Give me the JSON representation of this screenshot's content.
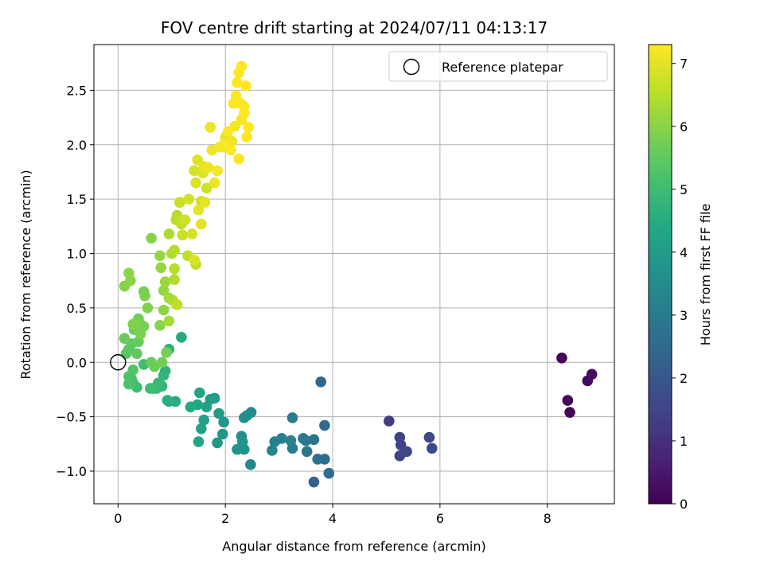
{
  "chart_data": {
    "type": "scatter",
    "title": "FOV centre drift starting at 2024/07/11 04:13:17",
    "xlabel": "Angular distance from reference (arcmin)",
    "ylabel": "Rotation from reference (arcmin)",
    "xlim": [
      -0.45,
      9.25
    ],
    "ylim": [
      -1.3,
      2.92
    ],
    "xticks": [
      0,
      2,
      4,
      6,
      8
    ],
    "yticks": [
      -1.0,
      -0.5,
      0.0,
      0.5,
      1.0,
      1.5,
      2.0,
      2.5
    ],
    "xtick_labels": [
      "0",
      "2",
      "4",
      "6",
      "8"
    ],
    "ytick_labels": [
      "−1.0",
      "−0.5",
      "0.0",
      "0.5",
      "1.0",
      "1.5",
      "2.0",
      "2.5"
    ],
    "grid": true,
    "legend": {
      "placement": "top-right",
      "entries": [
        "Reference platepar"
      ]
    },
    "colorbar": {
      "label": "Hours from first FF file",
      "colormap": "viridis",
      "range": [
        0,
        7.3
      ],
      "ticks": [
        0,
        1,
        2,
        3,
        4,
        5,
        6,
        7
      ],
      "tick_labels": [
        "0",
        "1",
        "2",
        "3",
        "4",
        "5",
        "6",
        "7"
      ]
    },
    "reference_point": {
      "name": "Reference platepar",
      "x": 0.0,
      "y": 0.0
    },
    "points": [
      [
        8.27,
        0.04,
        0.05
      ],
      [
        8.38,
        -0.35,
        0.1
      ],
      [
        8.42,
        -0.46,
        0.15
      ],
      [
        8.75,
        -0.17,
        0.2
      ],
      [
        8.83,
        -0.11,
        0.25
      ],
      [
        5.05,
        -0.54,
        1.3
      ],
      [
        5.25,
        -0.69,
        1.4
      ],
      [
        5.27,
        -0.76,
        1.45
      ],
      [
        5.25,
        -0.86,
        1.5
      ],
      [
        5.38,
        -0.82,
        1.55
      ],
      [
        5.8,
        -0.69,
        1.6
      ],
      [
        5.85,
        -0.79,
        1.65
      ],
      [
        3.65,
        -1.1,
        2.3
      ],
      [
        3.78,
        -0.18,
        2.4
      ],
      [
        3.85,
        -0.58,
        2.5
      ],
      [
        3.93,
        -1.02,
        2.6
      ],
      [
        3.85,
        -0.89,
        2.65
      ],
      [
        3.72,
        -0.89,
        2.7
      ],
      [
        3.65,
        -0.71,
        2.8
      ],
      [
        3.5,
        -0.72,
        2.85
      ],
      [
        3.52,
        -0.82,
        2.9
      ],
      [
        3.45,
        -0.7,
        2.95
      ],
      [
        3.25,
        -0.51,
        3.0
      ],
      [
        3.25,
        -0.79,
        3.05
      ],
      [
        3.05,
        -0.7,
        3.1
      ],
      [
        2.92,
        -0.73,
        3.15
      ],
      [
        3.22,
        -0.72,
        3.2
      ],
      [
        2.87,
        -0.81,
        3.25
      ],
      [
        2.47,
        -0.94,
        3.4
      ],
      [
        2.48,
        -0.46,
        3.45
      ],
      [
        2.4,
        -0.49,
        3.5
      ],
      [
        2.35,
        -0.51,
        3.55
      ],
      [
        2.3,
        -0.68,
        3.6
      ],
      [
        2.35,
        -0.8,
        3.65
      ],
      [
        2.32,
        -0.73,
        3.7
      ],
      [
        2.22,
        -0.8,
        3.75
      ],
      [
        1.97,
        -0.55,
        3.8
      ],
      [
        1.95,
        -0.66,
        3.85
      ],
      [
        1.85,
        -0.74,
        3.9
      ],
      [
        1.88,
        -0.47,
        3.95
      ],
      [
        1.8,
        -0.33,
        4.0
      ],
      [
        1.72,
        -0.34,
        4.05
      ],
      [
        1.65,
        -0.41,
        4.1
      ],
      [
        1.6,
        -0.53,
        4.15
      ],
      [
        1.55,
        -0.61,
        4.2
      ],
      [
        1.52,
        -0.28,
        4.25
      ],
      [
        1.5,
        -0.73,
        4.3
      ],
      [
        1.48,
        -0.39,
        4.35
      ],
      [
        1.35,
        -0.41,
        4.4
      ],
      [
        1.18,
        0.23,
        4.45
      ],
      [
        1.07,
        -0.36,
        4.5
      ],
      [
        0.95,
        -0.36,
        4.55
      ],
      [
        0.92,
        -0.35,
        4.6
      ],
      [
        0.95,
        0.12,
        4.65
      ],
      [
        0.88,
        -0.08,
        4.7
      ],
      [
        0.85,
        -0.12,
        4.75
      ],
      [
        0.82,
        -0.22,
        4.8
      ],
      [
        0.75,
        -0.19,
        4.85
      ],
      [
        0.72,
        -0.24,
        4.9
      ],
      [
        0.65,
        -0.24,
        4.95
      ],
      [
        0.6,
        -0.24,
        5.0
      ],
      [
        0.48,
        -0.02,
        5.05
      ],
      [
        0.35,
        -0.23,
        5.05
      ],
      [
        0.28,
        -0.19,
        5.1
      ],
      [
        0.25,
        -0.15,
        5.15
      ],
      [
        0.2,
        -0.2,
        5.2
      ],
      [
        0.2,
        -0.13,
        5.25
      ],
      [
        0.28,
        -0.07,
        5.3
      ],
      [
        0.15,
        0.08,
        5.35
      ],
      [
        0.2,
        0.12,
        5.4
      ],
      [
        0.25,
        0.17,
        5.45
      ],
      [
        0.35,
        0.08,
        5.5
      ],
      [
        0.38,
        0.19,
        5.55
      ],
      [
        0.12,
        0.22,
        5.6
      ],
      [
        0.3,
        0.3,
        5.65
      ],
      [
        0.38,
        0.4,
        5.7
      ],
      [
        0.42,
        0.35,
        5.75
      ],
      [
        0.48,
        0.33,
        5.8
      ],
      [
        0.42,
        0.26,
        5.85
      ],
      [
        0.28,
        0.35,
        5.9
      ],
      [
        0.12,
        0.7,
        5.95
      ],
      [
        0.23,
        0.75,
        6.0
      ],
      [
        0.2,
        0.82,
        6.05
      ],
      [
        0.62,
        0.0,
        5.6
      ],
      [
        0.68,
        -0.04,
        5.65
      ],
      [
        0.82,
        0.0,
        5.7
      ],
      [
        0.9,
        0.09,
        5.75
      ],
      [
        0.48,
        0.65,
        5.8
      ],
      [
        0.5,
        0.61,
        5.85
      ],
      [
        0.55,
        0.5,
        5.9
      ],
      [
        0.62,
        1.14,
        5.95
      ],
      [
        0.78,
        0.34,
        6.0
      ],
      [
        0.85,
        0.48,
        6.05
      ],
      [
        0.78,
        0.98,
        6.1
      ],
      [
        0.8,
        0.87,
        6.15
      ],
      [
        0.88,
        0.74,
        6.2
      ],
      [
        0.95,
        0.59,
        6.25
      ],
      [
        0.95,
        0.38,
        6.3
      ],
      [
        1.0,
        1.0,
        6.35
      ],
      [
        1.02,
        0.57,
        6.4
      ],
      [
        1.05,
        0.76,
        6.45
      ],
      [
        1.05,
        0.86,
        6.5
      ],
      [
        1.08,
        1.31,
        6.55
      ],
      [
        1.1,
        0.53,
        6.6
      ],
      [
        1.15,
        1.47,
        6.6
      ],
      [
        1.18,
        1.27,
        6.65
      ],
      [
        1.2,
        1.17,
        6.7
      ],
      [
        1.25,
        1.31,
        6.75
      ],
      [
        1.32,
        1.5,
        6.8
      ],
      [
        1.38,
        1.18,
        6.85
      ],
      [
        1.42,
        0.94,
        6.9
      ],
      [
        1.45,
        1.65,
        6.9
      ],
      [
        1.48,
        1.86,
        6.95
      ],
      [
        1.5,
        1.4,
        7.0
      ],
      [
        1.55,
        1.27,
        7.0
      ],
      [
        1.6,
        1.8,
        7.05
      ],
      [
        1.62,
        1.47,
        7.05
      ],
      [
        1.68,
        1.79,
        7.1
      ],
      [
        1.72,
        2.16,
        7.1
      ],
      [
        1.75,
        1.95,
        7.15
      ],
      [
        1.8,
        1.65,
        7.15
      ],
      [
        1.85,
        1.76,
        7.2
      ],
      [
        1.9,
        1.98,
        7.2
      ],
      [
        1.97,
        2.0,
        7.25
      ],
      [
        2.05,
        2.12,
        7.25
      ],
      [
        2.1,
        1.95,
        7.27
      ],
      [
        2.15,
        2.38,
        7.28
      ],
      [
        2.2,
        2.45,
        7.29
      ],
      [
        2.22,
        2.57,
        7.3
      ],
      [
        2.25,
        1.87,
        7.3
      ],
      [
        2.25,
        2.66,
        7.3
      ],
      [
        2.28,
        2.38,
        7.3
      ],
      [
        2.3,
        2.72,
        7.3
      ],
      [
        2.35,
        2.29,
        7.3
      ],
      [
        2.38,
        2.54,
        7.3
      ],
      [
        2.4,
        2.07,
        7.3
      ],
      [
        2.43,
        2.16,
        7.3
      ],
      [
        0.95,
        1.18,
        6.4
      ],
      [
        1.05,
        1.03,
        6.45
      ],
      [
        1.1,
        1.35,
        6.5
      ],
      [
        1.3,
        0.98,
        6.55
      ],
      [
        1.45,
        0.9,
        6.6
      ],
      [
        0.85,
        0.66,
        6.1
      ],
      [
        1.15,
        1.47,
        6.7
      ],
      [
        1.55,
        1.48,
        6.75
      ],
      [
        1.65,
        1.6,
        6.8
      ],
      [
        1.42,
        1.76,
        6.85
      ],
      [
        1.58,
        1.74,
        6.9
      ],
      [
        1.95,
        1.98,
        7.0
      ],
      [
        2.0,
        2.07,
        7.05
      ],
      [
        2.08,
        2.0,
        7.1
      ],
      [
        2.12,
        2.03,
        7.15
      ],
      [
        2.18,
        2.17,
        7.2
      ],
      [
        2.3,
        2.23,
        7.25
      ],
      [
        2.35,
        2.35,
        7.27
      ]
    ]
  }
}
